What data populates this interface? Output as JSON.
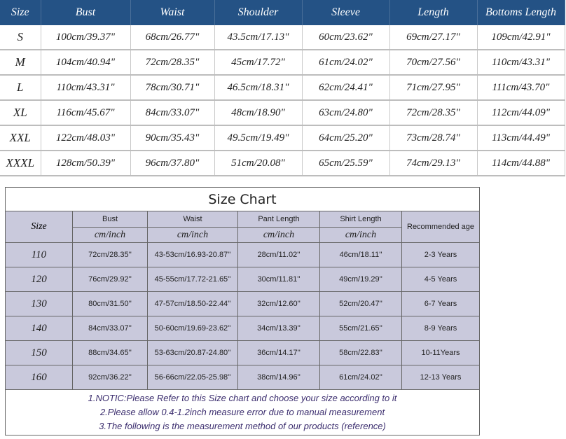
{
  "adult_chart": {
    "headers": [
      "Size",
      "Bust",
      "Waist",
      "Shoulder",
      "Sleeve",
      "Length",
      "Bottoms Length"
    ],
    "rows": [
      [
        "S",
        "100cm/39.37\"",
        "68cm/26.77\"",
        "43.5cm/17.13\"",
        "60cm/23.62\"",
        "69cm/27.17\"",
        "109cm/42.91\""
      ],
      [
        "M",
        "104cm/40.94\"",
        "72cm/28.35\"",
        "45cm/17.72\"",
        "61cm/24.02\"",
        "70cm/27.56\"",
        "110cm/43.31\""
      ],
      [
        "L",
        "110cm/43.31\"",
        "78cm/30.71\"",
        "46.5cm/18.31\"",
        "62cm/24.41\"",
        "71cm/27.95\"",
        "111cm/43.70\""
      ],
      [
        "XL",
        "116cm/45.67\"",
        "84cm/33.07\"",
        "48cm/18.90\"",
        "63cm/24.80\"",
        "72cm/28.35\"",
        "112cm/44.09\""
      ],
      [
        "XXL",
        "122cm/48.03\"",
        "90cm/35.43\"",
        "49.5cm/19.49\"",
        "64cm/25.20\"",
        "73cm/28.74\"",
        "113cm/44.49\""
      ],
      [
        "XXXL",
        "128cm/50.39\"",
        "96cm/37.80\"",
        "51cm/20.08\"",
        "65cm/25.59\"",
        "74cm/29.13\"",
        "114cm/44.88\""
      ]
    ],
    "header_color": "#245285"
  },
  "kids_chart": {
    "title": "Size Chart",
    "size_header": "Size",
    "headers": [
      "Bust",
      "Waist",
      "Pant Length",
      "Shirt Length"
    ],
    "unit": "cm/inch",
    "age_header": "Recommended age",
    "rows": [
      [
        "110",
        "72cm/28.35''",
        "43-53cm/16.93-20.87''",
        "28cm/11.02''",
        "46cm/18.11''",
        "2-3 Years"
      ],
      [
        "120",
        "76cm/29.92''",
        "45-55cm/17.72-21.65''",
        "30cm/11.81''",
        "49cm/19.29''",
        "4-5 Years"
      ],
      [
        "130",
        "80cm/31.50''",
        "47-57cm/18.50-22.44''",
        "32cm/12.60''",
        "52cm/20.47''",
        "6-7 Years"
      ],
      [
        "140",
        "84cm/33.07''",
        "50-60cm/19.69-23.62''",
        "34cm/13.39''",
        "55cm/21.65''",
        "8-9 Years"
      ],
      [
        "150",
        "88cm/34.65''",
        "53-63cm/20.87-24.80''",
        "36cm/14.17''",
        "58cm/22.83''",
        "10-11Years"
      ],
      [
        "160",
        "92cm/36.22''",
        "56-66cm/22.05-25.98''",
        "38cm/14.96''",
        "61cm/24.02''",
        "12-13 Years"
      ]
    ],
    "notes": [
      "1.NOTIC:Please Refer to this Size chart and choose your size according to it",
      "2.Please allow 0.4-1.2inch measure error due to manual measurement",
      "3.The following is the measurement method of our products (reference)"
    ],
    "cell_color": "#c9c9dc"
  }
}
